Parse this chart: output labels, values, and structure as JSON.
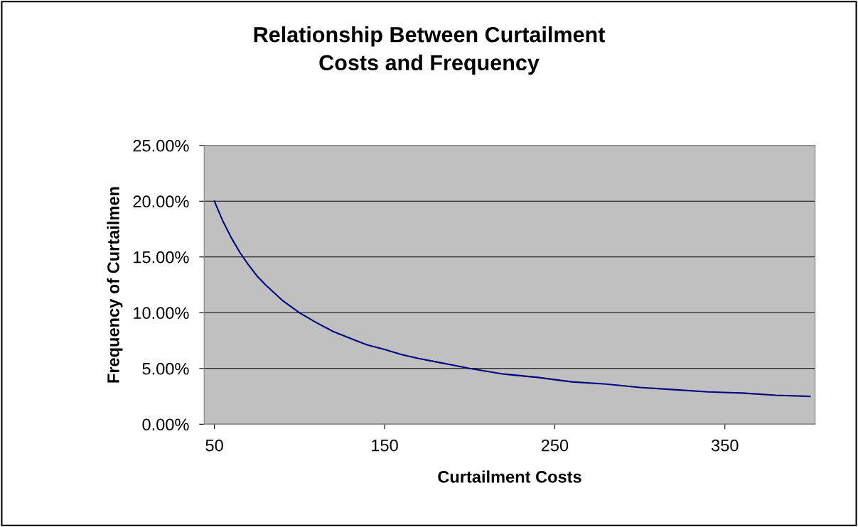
{
  "chart_data": {
    "type": "line",
    "title": "Relationship Between Curtailment\nCosts and Frequency",
    "xlabel": "Curtailment Costs",
    "ylabel": "Frequency of Curtailmen",
    "x": [
      50,
      55,
      60,
      65,
      70,
      75,
      80,
      90,
      100,
      110,
      120,
      130,
      140,
      150,
      160,
      170,
      180,
      190,
      200,
      220,
      240,
      260,
      280,
      300,
      320,
      340,
      360,
      380,
      400
    ],
    "series": [
      {
        "color": "#000080",
        "values": [
          20,
          18.2,
          16.7,
          15.4,
          14.3,
          13.3,
          12.5,
          11.1,
          10,
          9.1,
          8.3,
          7.7,
          7.1,
          6.7,
          6.25,
          5.9,
          5.6,
          5.3,
          5,
          4.5,
          4.2,
          3.8,
          3.6,
          3.3,
          3.1,
          2.9,
          2.8,
          2.6,
          2.5
        ]
      }
    ],
    "xlim": [
      44,
      403
    ],
    "xticks": [
      50,
      150,
      250,
      350
    ],
    "ylim": [
      0,
      25
    ],
    "yticks": [
      {
        "value": 0,
        "label": "0.00%"
      },
      {
        "value": 5,
        "label": "5.00%"
      },
      {
        "value": 10,
        "label": "10.00%"
      },
      {
        "value": 15,
        "label": "15.00%"
      },
      {
        "value": 20,
        "label": "20.00%"
      },
      {
        "value": 25,
        "label": "25.00%"
      }
    ],
    "grid": "y",
    "marker": "none",
    "line_style": "solid"
  }
}
